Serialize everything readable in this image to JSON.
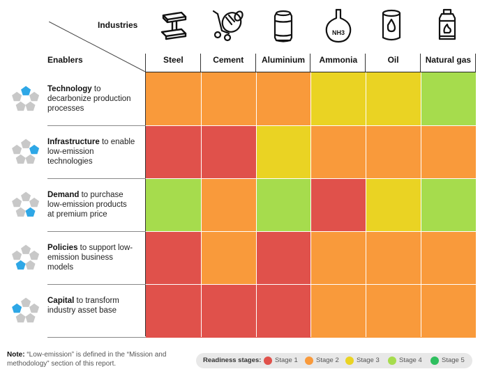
{
  "header": {
    "industries_label": "Industries",
    "enablers_label": "Enablers"
  },
  "colors": {
    "stage1": "#e0514b",
    "stage2": "#f99a3b",
    "stage3": "#ead323",
    "stage4": "#a6dc4d",
    "stage5": "#2fbf5f",
    "pentagon_gray": "#c8c8c8",
    "pentagon_blue": "#2ea7e6"
  },
  "industry_icons": [
    "steel-beam-icon",
    "cement-mixer-icon",
    "aluminium-can-icon",
    "ammonia-flask-icon",
    "oil-can-icon",
    "gas-cylinder-icon"
  ],
  "ammonia_formula": "NH3",
  "chart_data": {
    "type": "heatmap",
    "columns": [
      "Steel",
      "Cement",
      "Aluminium",
      "Ammonia",
      "Oil",
      "Natural gas"
    ],
    "rows": [
      {
        "title": "Technology",
        "rest": " to decarbonize production processes",
        "highlight": 0,
        "stages": [
          2,
          2,
          2,
          3,
          3,
          4
        ]
      },
      {
        "title": "Infrastructure",
        "rest": " to enable low-emission technologies",
        "highlight": 1,
        "stages": [
          1,
          1,
          3,
          2,
          2,
          2
        ]
      },
      {
        "title": "Demand",
        "rest": " to purchase low-emission products at premium price",
        "highlight": 2,
        "stages": [
          4,
          2,
          4,
          1,
          3,
          4
        ]
      },
      {
        "title": "Policies",
        "rest": " to support low-emission business models",
        "highlight": 3,
        "stages": [
          1,
          2,
          1,
          2,
          2,
          2
        ]
      },
      {
        "title": "Capital",
        "rest": " to transform industry asset base",
        "highlight": 4,
        "stages": [
          1,
          1,
          1,
          2,
          2,
          2
        ]
      }
    ],
    "legend": {
      "title": "Readiness stages:",
      "items": [
        "Stage 1",
        "Stage 2",
        "Stage 3",
        "Stage 4",
        "Stage 5"
      ]
    }
  },
  "note": {
    "bold": "Note:",
    "text": " “Low-emission” is defined in the “Mission and methodology” section of this report."
  }
}
